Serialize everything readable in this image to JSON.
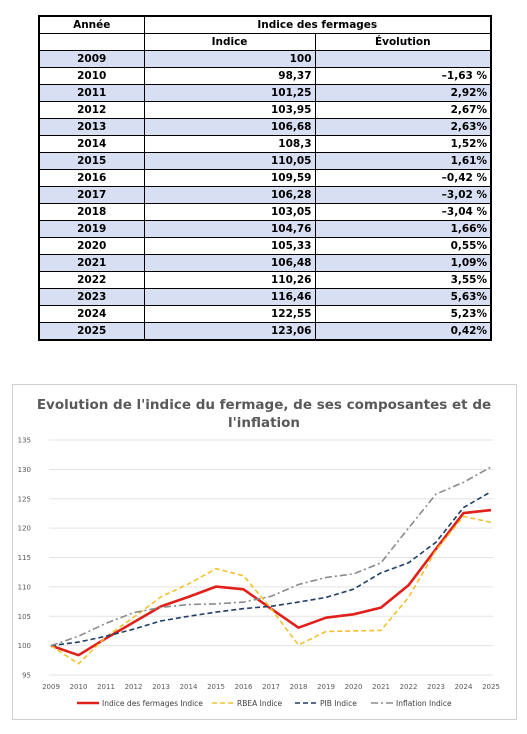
{
  "table": {
    "header_year": "Année",
    "header_group": "Indice des fermages",
    "header_index": "Indice",
    "header_evolution": "Évolution",
    "rows": [
      {
        "year": "2009",
        "index": "100",
        "evolution": ""
      },
      {
        "year": "2010",
        "index": "98,37",
        "evolution": "–1,63 %"
      },
      {
        "year": "2011",
        "index": "101,25",
        "evolution": "2,92%"
      },
      {
        "year": "2012",
        "index": "103,95",
        "evolution": "2,67%"
      },
      {
        "year": "2013",
        "index": "106,68",
        "evolution": "2,63%"
      },
      {
        "year": "2014",
        "index": "108,3",
        "evolution": "1,52%"
      },
      {
        "year": "2015",
        "index": "110,05",
        "evolution": "1,61%"
      },
      {
        "year": "2016",
        "index": "109,59",
        "evolution": "–0,42 %"
      },
      {
        "year": "2017",
        "index": "106,28",
        "evolution": "–3,02 %"
      },
      {
        "year": "2018",
        "index": "103,05",
        "evolution": "–3,04 %"
      },
      {
        "year": "2019",
        "index": "104,76",
        "evolution": "1,66%"
      },
      {
        "year": "2020",
        "index": "105,33",
        "evolution": "0,55%"
      },
      {
        "year": "2021",
        "index": "106,48",
        "evolution": "1,09%"
      },
      {
        "year": "2022",
        "index": "110,26",
        "evolution": "3,55%"
      },
      {
        "year": "2023",
        "index": "116,46",
        "evolution": "5,63%"
      },
      {
        "year": "2024",
        "index": "122,55",
        "evolution": "5,23%"
      },
      {
        "year": "2025",
        "index": "123,06",
        "evolution": "0,42%"
      }
    ]
  },
  "chart_data": {
    "type": "line",
    "title": "Evolution de l'indice du fermage, de ses composantes et de l'inflation",
    "title_lines": [
      "Evolution de l'indice du fermage, de ses composantes et de",
      "l'inflation"
    ],
    "x": [
      "2009",
      "2010",
      "2011",
      "2012",
      "2013",
      "2014",
      "2015",
      "2016",
      "2017",
      "2018",
      "2019",
      "2020",
      "2021",
      "2022",
      "2023",
      "2024",
      "2025"
    ],
    "ylim": [
      95,
      135
    ],
    "yticks": [
      95,
      100,
      105,
      110,
      115,
      120,
      125,
      130,
      135
    ],
    "grid": true,
    "legend_position": "bottom",
    "series": [
      {
        "name": "Indice des fermages Indice",
        "color": "#e0201b",
        "style": "solid",
        "values": [
          100,
          98.37,
          101.25,
          103.95,
          106.68,
          108.3,
          110.05,
          109.59,
          106.28,
          103.05,
          104.76,
          105.33,
          106.48,
          110.26,
          116.46,
          122.55,
          123.06
        ]
      },
      {
        "name": "RBEA Indice",
        "color": "#f2c12e",
        "style": "dash",
        "values": [
          100,
          96.9,
          101.5,
          104.8,
          108.3,
          110.5,
          113.1,
          111.9,
          106.3,
          100.1,
          102.4,
          102.5,
          102.6,
          108.2,
          116.2,
          122.0,
          121.0
        ]
      },
      {
        "name": "PIB Indice",
        "color": "#1f3f66",
        "style": "dash",
        "values": [
          100,
          100.6,
          101.6,
          102.8,
          104.2,
          105.0,
          105.7,
          106.3,
          106.7,
          107.4,
          108.2,
          109.6,
          112.4,
          114.1,
          117.6,
          123.5,
          126.2
        ]
      },
      {
        "name": "Inflation Indice",
        "color": "#8a8a8a",
        "style": "dashdot",
        "values": [
          100,
          101.6,
          103.8,
          105.6,
          106.5,
          107.0,
          107.1,
          107.4,
          108.4,
          110.4,
          111.6,
          112.2,
          114.1,
          120.0,
          125.8,
          127.8,
          130.4
        ]
      }
    ]
  }
}
